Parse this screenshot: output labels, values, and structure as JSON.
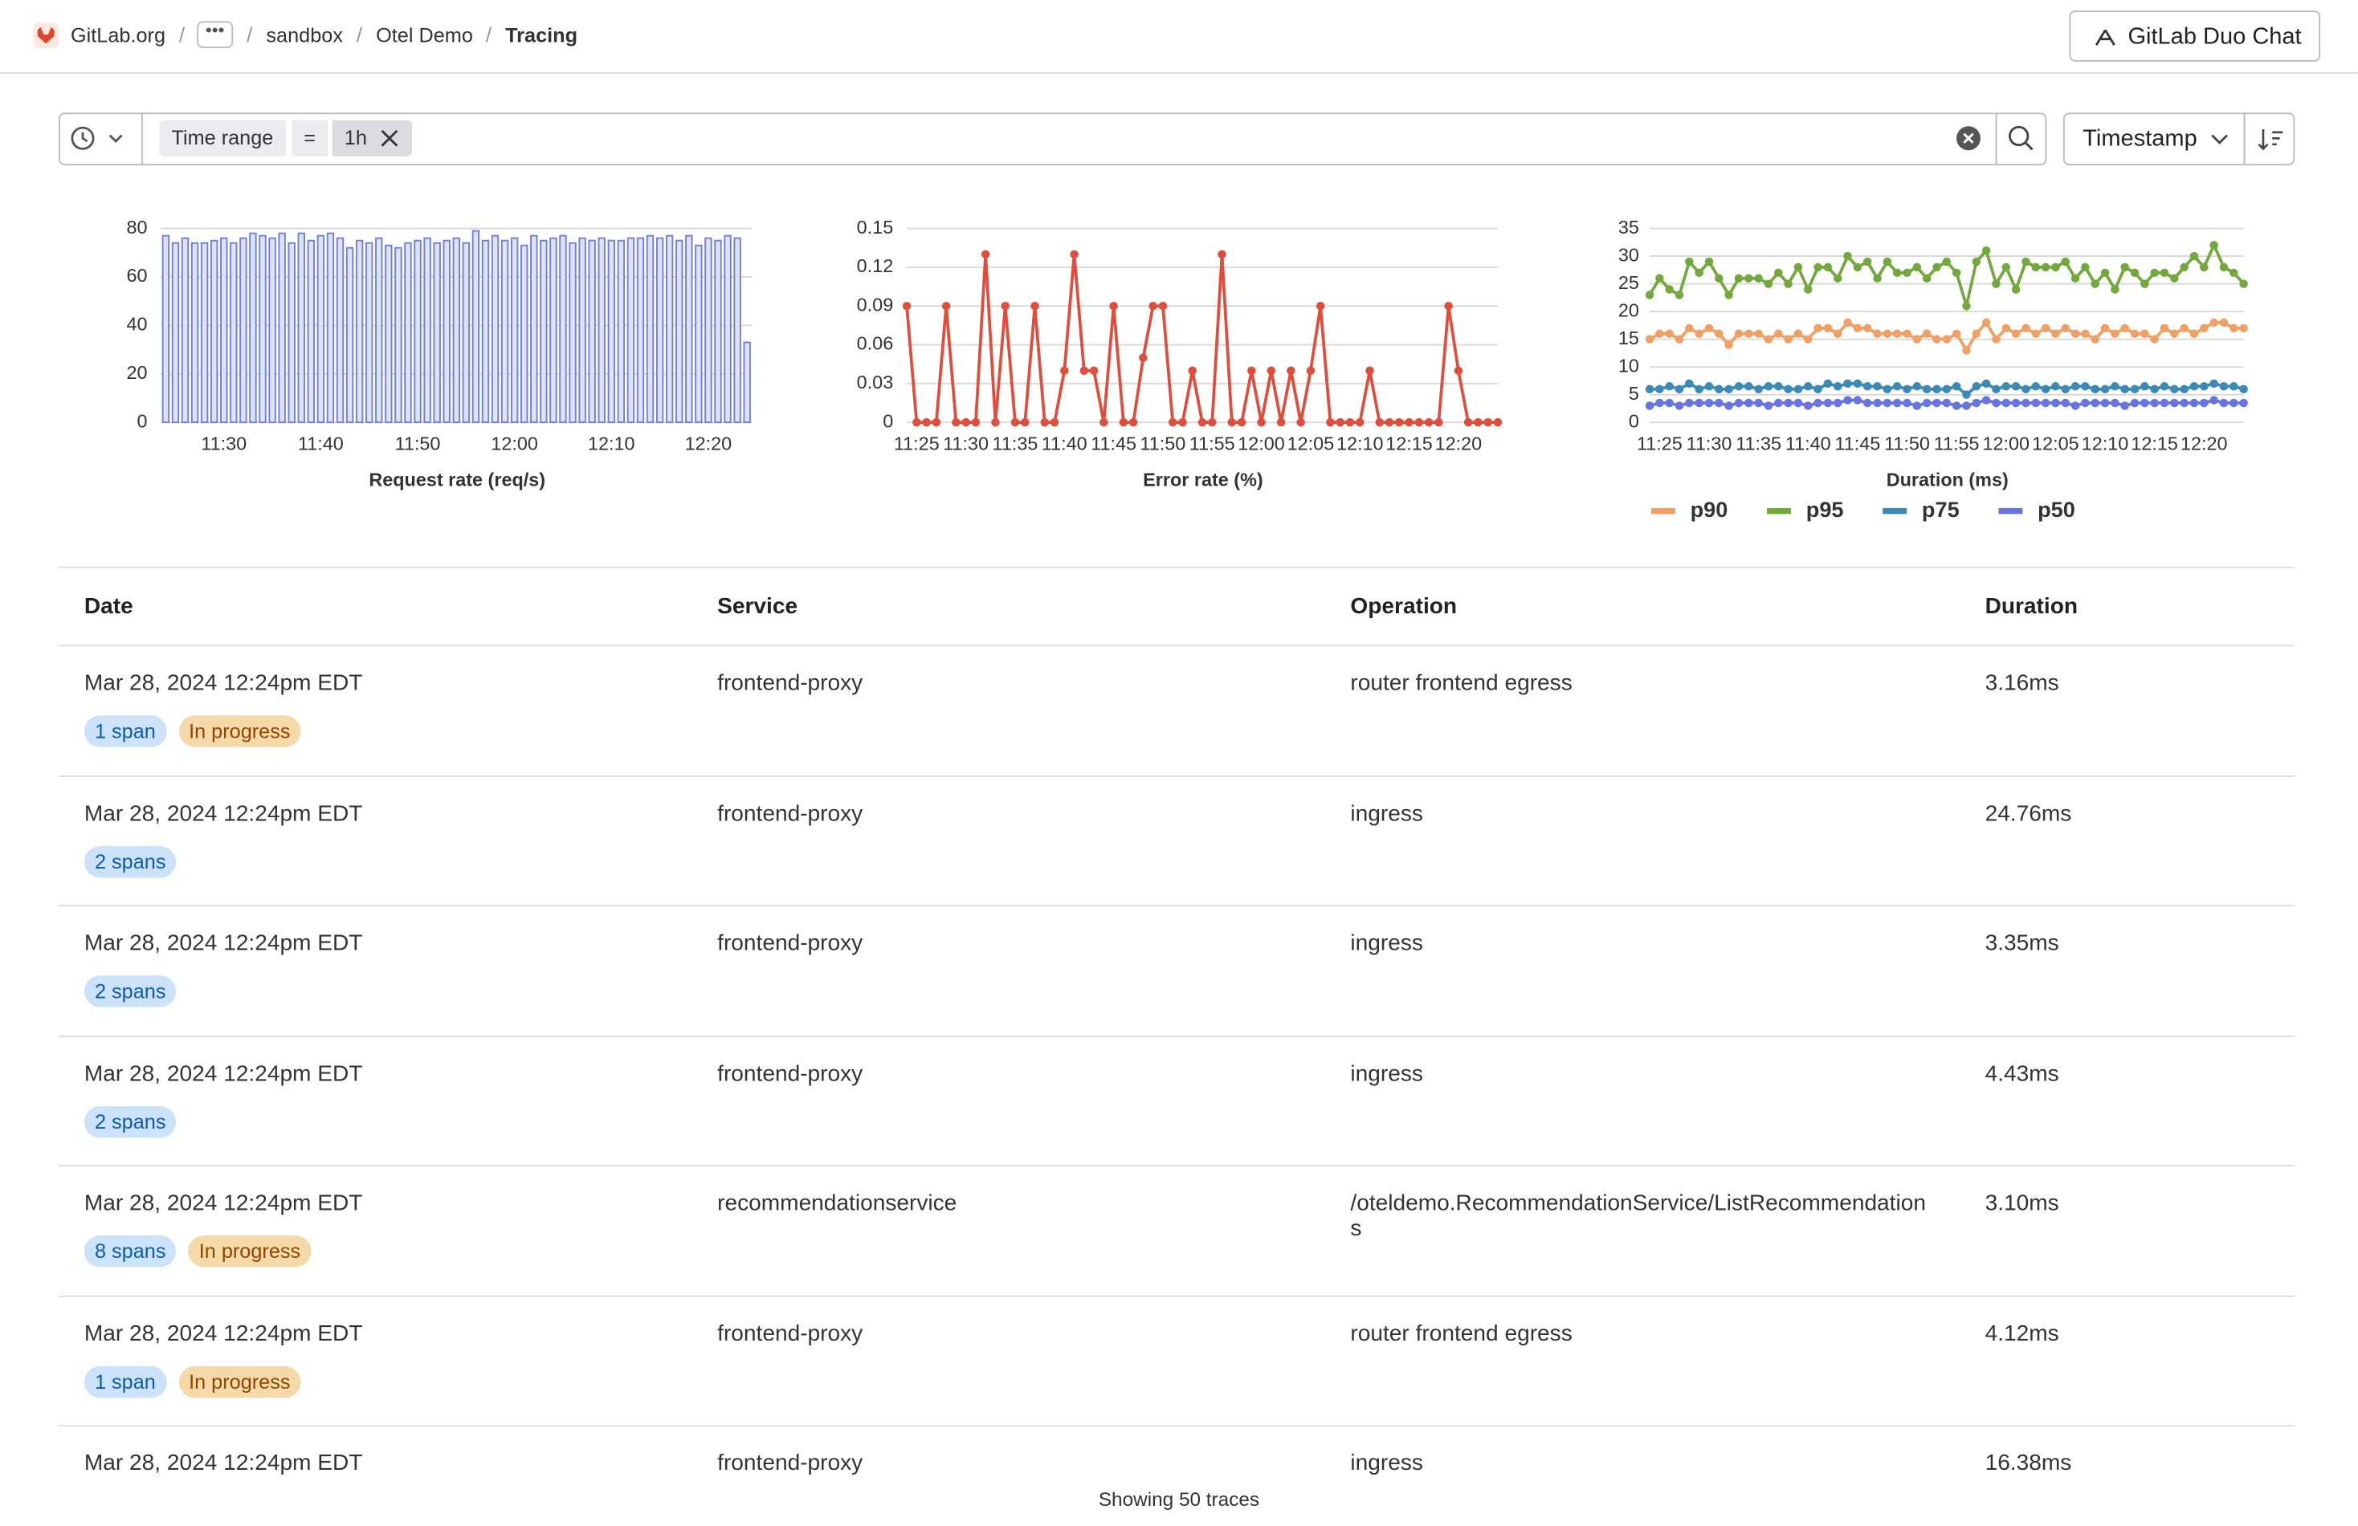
{
  "breadcrumbs": [
    "GitLab.org",
    "sandbox",
    "Otel Demo",
    "Tracing"
  ],
  "duo_button": "GitLab Duo Chat",
  "filter": {
    "field": "Time range",
    "operator": "=",
    "value": "1h"
  },
  "sort": "Timestamp",
  "chart_data": [
    {
      "type": "bar",
      "x_label": "Request rate (req/s)",
      "color": "#6b7ee0",
      "grid": true,
      "ylim": [
        0,
        80
      ],
      "yticks": [
        0,
        20,
        40,
        60,
        80
      ],
      "categories": [
        null,
        null,
        null,
        null,
        null,
        null,
        "11:30",
        null,
        null,
        null,
        null,
        null,
        null,
        null,
        null,
        null,
        "11:40",
        null,
        null,
        null,
        null,
        null,
        null,
        null,
        null,
        null,
        "11:50",
        null,
        null,
        null,
        null,
        null,
        null,
        null,
        null,
        null,
        "12:00",
        null,
        null,
        null,
        null,
        null,
        null,
        null,
        null,
        null,
        "12:10",
        null,
        null,
        null,
        null,
        null,
        null,
        null,
        null,
        null,
        "12:20",
        null,
        null,
        null,
        null
      ],
      "values": [
        77,
        74,
        76,
        74,
        74,
        75,
        76,
        74,
        76,
        78,
        77,
        76,
        78,
        74,
        78,
        75,
        77,
        78,
        76,
        72,
        75,
        74,
        76,
        73,
        72,
        74,
        75,
        76,
        74,
        75,
        76,
        74,
        79,
        75,
        77,
        75,
        76,
        73,
        77,
        75,
        76,
        77,
        74,
        76,
        75,
        76,
        75,
        75,
        76,
        76,
        77,
        76,
        77,
        75,
        77,
        73,
        76,
        75,
        77,
        76,
        33
      ]
    },
    {
      "type": "line",
      "x_label": "Error rate (%)",
      "color": "#e24c3b",
      "grid": true,
      "ylim": [
        0,
        0.15
      ],
      "yticks": [
        0,
        0.03,
        0.06,
        0.09,
        0.12,
        0.15
      ],
      "categories": [
        null,
        "11:25",
        null,
        null,
        null,
        null,
        "11:30",
        null,
        null,
        null,
        null,
        "11:35",
        null,
        null,
        null,
        null,
        "11:40",
        null,
        null,
        null,
        null,
        "11:45",
        null,
        null,
        null,
        null,
        "11:50",
        null,
        null,
        null,
        null,
        "11:55",
        null,
        null,
        null,
        null,
        "12:00",
        null,
        null,
        null,
        null,
        "12:05",
        null,
        null,
        null,
        null,
        "12:10",
        null,
        null,
        null,
        null,
        "12:15",
        null,
        null,
        null,
        null,
        "12:20",
        null,
        null,
        null,
        null
      ],
      "values": [
        0.09,
        0,
        0,
        0,
        0.09,
        0,
        0,
        0,
        0.13,
        0,
        0.09,
        0,
        0,
        0.09,
        0,
        0,
        0.04,
        0.13,
        0.04,
        0.04,
        0,
        0.09,
        0,
        0,
        0.05,
        0.09,
        0.09,
        0,
        0,
        0.04,
        0,
        0,
        0.13,
        0,
        0,
        0.04,
        0,
        0.04,
        0,
        0.04,
        0,
        0.04,
        0.09,
        0,
        0,
        0,
        0,
        0.04,
        0,
        0,
        0,
        0,
        0,
        0,
        0,
        0.09,
        0.04,
        0,
        0,
        0,
        0
      ]
    },
    {
      "type": "line",
      "x_label": "Duration (ms)",
      "grid": true,
      "legend": "bottom",
      "ylim": [
        0,
        35
      ],
      "yticks": [
        0,
        5,
        10,
        15,
        20,
        25,
        30,
        35
      ],
      "categories": [
        null,
        "11:25",
        null,
        null,
        null,
        null,
        "11:30",
        null,
        null,
        null,
        null,
        "11:35",
        null,
        null,
        null,
        null,
        "11:40",
        null,
        null,
        null,
        null,
        "11:45",
        null,
        null,
        null,
        null,
        "11:50",
        null,
        null,
        null,
        null,
        "11:55",
        null,
        null,
        null,
        null,
        "12:00",
        null,
        null,
        null,
        null,
        "12:05",
        null,
        null,
        null,
        null,
        "12:10",
        null,
        null,
        null,
        null,
        "12:15",
        null,
        null,
        null,
        null,
        "12:20",
        null,
        null,
        null,
        null
      ],
      "series": [
        {
          "name": "p90",
          "color": "#f0a064",
          "values": [
            15,
            16,
            16,
            15,
            17,
            16,
            17,
            16,
            14,
            16,
            16,
            16,
            15,
            16,
            15,
            16,
            15,
            17,
            17,
            16,
            18,
            17,
            17,
            16,
            16,
            16,
            16,
            15,
            16,
            15,
            15,
            16,
            13,
            16,
            18,
            15,
            17,
            16,
            17,
            16,
            17,
            16,
            17,
            16,
            16,
            15,
            17,
            16,
            17,
            16,
            16,
            15,
            17,
            16,
            17,
            16,
            17,
            18,
            18,
            17,
            17
          ]
        },
        {
          "name": "p95",
          "color": "#72a83c",
          "values": [
            23,
            26,
            24,
            23,
            29,
            27,
            29,
            26,
            23,
            26,
            26,
            26,
            25,
            27,
            25,
            28,
            24,
            28,
            28,
            26,
            30,
            28,
            29,
            26,
            29,
            27,
            27,
            28,
            26,
            28,
            29,
            27,
            21,
            29,
            31,
            25,
            28,
            24,
            29,
            28,
            28,
            28,
            29,
            26,
            28,
            25,
            27,
            24,
            28,
            27,
            25,
            27,
            27,
            26,
            28,
            30,
            28,
            32,
            28,
            27,
            25
          ]
        },
        {
          "name": "p75",
          "color": "#3a8ab5",
          "values": [
            6,
            6,
            6.5,
            6,
            7,
            6,
            6.5,
            6,
            6,
            6.5,
            6.5,
            6,
            6.5,
            6.5,
            6,
            6,
            6.5,
            6,
            7,
            6.5,
            7,
            7,
            6.5,
            6.5,
            6,
            6.5,
            6,
            6.5,
            6,
            6,
            6,
            6.5,
            5,
            6.5,
            7,
            6,
            6.5,
            6.5,
            6,
            6.5,
            6,
            6.5,
            6,
            6.5,
            6.5,
            6,
            6,
            6.5,
            6,
            6,
            6.5,
            6,
            6.5,
            6,
            6,
            6.5,
            6.5,
            7,
            6.5,
            6.5,
            6
          ]
        },
        {
          "name": "p50",
          "color": "#6675e0",
          "values": [
            3,
            3.5,
            3.5,
            3,
            3.5,
            3.5,
            3.5,
            3.5,
            3,
            3.5,
            3.5,
            3.5,
            3,
            3.5,
            3.5,
            3.5,
            3,
            3.5,
            3.5,
            3.5,
            4,
            4,
            3.5,
            3.5,
            3.5,
            3.5,
            3.5,
            3,
            3.5,
            3.5,
            3.5,
            3,
            3,
            3.5,
            4,
            3.5,
            3.5,
            3.5,
            3.5,
            3.5,
            3.5,
            3.5,
            3.5,
            3,
            3.5,
            3.5,
            3.5,
            3.5,
            3,
            3.5,
            3.5,
            3.5,
            3.5,
            3.5,
            3.5,
            3.5,
            3.5,
            4,
            3.5,
            3.5,
            3.5
          ]
        }
      ]
    }
  ],
  "table": {
    "columns": [
      "Date",
      "Service",
      "Operation",
      "Duration"
    ],
    "rows": [
      {
        "date": "Mar 28, 2024 12:24pm EDT",
        "service": "frontend-proxy",
        "operation": "router frontend egress",
        "duration": "3.16ms",
        "spans": "1 span",
        "status": "In progress"
      },
      {
        "date": "Mar 28, 2024 12:24pm EDT",
        "service": "frontend-proxy",
        "operation": "ingress",
        "duration": "24.76ms",
        "spans": "2 spans"
      },
      {
        "date": "Mar 28, 2024 12:24pm EDT",
        "service": "frontend-proxy",
        "operation": "ingress",
        "duration": "3.35ms",
        "spans": "2 spans"
      },
      {
        "date": "Mar 28, 2024 12:24pm EDT",
        "service": "frontend-proxy",
        "operation": "ingress",
        "duration": "4.43ms",
        "spans": "2 spans"
      },
      {
        "date": "Mar 28, 2024 12:24pm EDT",
        "service": "recommendationservice",
        "operation": "/oteldemo.RecommendationService/ListRecommendations",
        "duration": "3.10ms",
        "spans": "8 spans",
        "status": "In progress"
      },
      {
        "date": "Mar 28, 2024 12:24pm EDT",
        "service": "frontend-proxy",
        "operation": "router frontend egress",
        "duration": "4.12ms",
        "spans": "1 span",
        "status": "In progress"
      },
      {
        "date": "Mar 28, 2024 12:24pm EDT",
        "service": "frontend-proxy",
        "operation": "ingress",
        "duration": "16.38ms"
      }
    ]
  },
  "footer": "Showing 50 traces"
}
